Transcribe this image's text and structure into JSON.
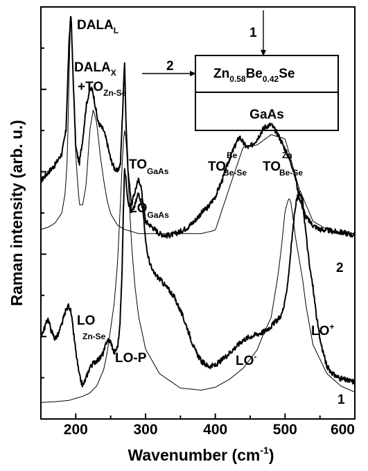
{
  "chart_data": {
    "type": "line",
    "xlabel": "Wavenumber (cm",
    "xlabel_sup": "-1",
    "xlabel_close": ")",
    "ylabel": "Raman intensity (arb. u.)",
    "xlim": [
      150,
      600
    ],
    "ylim": [
      0,
      100
    ],
    "x_ticks": [
      200,
      300,
      400,
      500,
      600
    ],
    "y_axis_tick_labels": "none",
    "grid": false,
    "legend": "none",
    "series": [
      {
        "label": "2",
        "x": [
          150,
          160,
          170,
          180,
          186,
          190,
          193,
          196,
          200,
          205,
          210,
          215,
          220,
          224,
          228,
          232,
          236,
          240,
          245,
          250,
          255,
          260,
          264,
          267,
          270,
          272,
          275,
          280,
          286,
          290,
          293,
          296,
          300,
          310,
          320,
          330,
          340,
          350,
          360,
          370,
          380,
          390,
          400,
          410,
          420,
          430,
          435,
          440,
          445,
          450,
          460,
          470,
          480,
          490,
          500,
          510,
          515,
          520,
          530,
          540,
          550,
          560,
          570,
          580,
          590,
          600
        ],
        "y": [
          57.8,
          59.8,
          61.6,
          64.4,
          70,
          90,
          99,
          84,
          66,
          62,
          68,
          76,
          80,
          80,
          76,
          72,
          71,
          70,
          67,
          63,
          61,
          60,
          62,
          74,
          87,
          72,
          60,
          52,
          56,
          58,
          57,
          53,
          48,
          46.5,
          45,
          44.5,
          44.8,
          45.5,
          46.5,
          48,
          50,
          51.5,
          54,
          58,
          63,
          67,
          68.5,
          67,
          66,
          66,
          68,
          70.8,
          71.5,
          69,
          65.5,
          61.5,
          58.5,
          54,
          49,
          47,
          46,
          45.8,
          45.5,
          45.3,
          45,
          44.5
        ]
      },
      {
        "label": "",
        "x": [
          150,
          160,
          170,
          180,
          185,
          188,
          190,
          192,
          194,
          196,
          200,
          205,
          210,
          215,
          220,
          225,
          230,
          235,
          240,
          245,
          250,
          260,
          270,
          280,
          290,
          300,
          320,
          340,
          360,
          380,
          400,
          420,
          440,
          460,
          480,
          500,
          520,
          540,
          560,
          580,
          600
        ],
        "y": [
          46,
          46.5,
          47.5,
          50,
          55,
          64,
          80,
          95,
          96,
          83,
          64,
          52,
          52,
          57,
          70,
          75,
          72,
          64,
          58,
          53,
          49.8,
          47,
          46,
          45.5,
          45,
          45,
          45,
          45,
          45,
          45,
          45.8,
          56,
          66,
          66.5,
          69,
          68,
          56,
          48,
          46,
          45.2,
          45
        ]
      },
      {
        "label": "1",
        "x": [
          150,
          155,
          160,
          165,
          170,
          175,
          180,
          185,
          190,
          193,
          196,
          200,
          205,
          210,
          215,
          220,
          225,
          230,
          235,
          240,
          245,
          250,
          255,
          260,
          263,
          266,
          268,
          270,
          272,
          275,
          280,
          285,
          290,
          295,
          298,
          300,
          303,
          306,
          310,
          320,
          330,
          340,
          350,
          360,
          370,
          380,
          390,
          400,
          410,
          420,
          430,
          440,
          450,
          460,
          470,
          480,
          490,
          495,
          500,
          505,
          510,
          515,
          520,
          525,
          530,
          535,
          540,
          545,
          550,
          560,
          570,
          580,
          590,
          600
        ],
        "y": [
          20,
          22,
          24.4,
          21.4,
          19.5,
          20.5,
          23,
          26,
          27.6,
          26,
          22,
          16.5,
          10.5,
          8,
          10,
          12.5,
          13.5,
          14.2,
          14.8,
          16.2,
          19.2,
          18.8,
          16,
          17.5,
          22,
          34,
          49,
          61,
          58,
          53,
          50,
          52,
          55,
          52,
          48,
          43,
          40,
          38,
          35.8,
          34,
          32,
          30,
          26.3,
          22,
          17,
          14,
          12.8,
          13,
          14.4,
          16,
          17.6,
          19.2,
          20,
          20.6,
          21.2,
          22.5,
          24.3,
          25.3,
          28.3,
          35,
          44,
          52,
          55,
          53,
          45,
          37,
          32,
          25,
          19.3,
          12.7,
          10.7,
          9.8,
          9.3,
          9
        ]
      },
      {
        "label": "",
        "x": [
          150,
          170,
          190,
          210,
          220,
          230,
          240,
          245,
          250,
          255,
          260,
          263,
          266,
          268,
          270,
          272,
          274,
          277,
          280,
          285,
          290,
          300,
          320,
          350,
          380,
          400,
          420,
          440,
          460,
          470,
          480,
          490,
          495,
          500,
          505,
          508,
          512,
          515,
          520,
          525,
          530,
          540,
          560,
          580,
          600
        ],
        "y": [
          4,
          4.2,
          4.5,
          5.5,
          6.3,
          8,
          12,
          16,
          22,
          28,
          38,
          49,
          60,
          67,
          70,
          68,
          62,
          52,
          42,
          32,
          25,
          17,
          11,
          7.5,
          7,
          7.7,
          9.6,
          12.3,
          16.8,
          21,
          24.6,
          35,
          42,
          50.5,
          53.5,
          53,
          48,
          44,
          39,
          34,
          27.5,
          18,
          11,
          8,
          6.5
        ]
      }
    ],
    "annotations": [
      {
        "text": "DALA",
        "sub": "L"
      },
      {
        "text": "DALA",
        "sub": "X"
      },
      {
        "text": "+TO",
        "sub": "Zn-Se"
      },
      {
        "text": "TO",
        "sub": "GaAs"
      },
      {
        "text": "LO",
        "sub": "GaAs"
      },
      {
        "text": "TO",
        "sup": "Be",
        "sub": "Be-Se"
      },
      {
        "text": "TO",
        "sup": "Zn",
        "sub": "Be-Se"
      },
      {
        "text": "LO",
        "sub": "Zn-Se"
      },
      {
        "text": "LO-P"
      },
      {
        "text": "LO",
        "sup": "-"
      },
      {
        "text": "LO",
        "sup": "+"
      },
      {
        "text": "2"
      },
      {
        "text": "1"
      }
    ],
    "inset": {
      "top_layer": {
        "text": "Zn",
        "sub1": "0.58",
        "mid": "Be",
        "sub2": "0.42",
        "tail": "Se"
      },
      "bottom_layer": "GaAs",
      "arrow_labels": [
        "1",
        "2"
      ]
    }
  }
}
